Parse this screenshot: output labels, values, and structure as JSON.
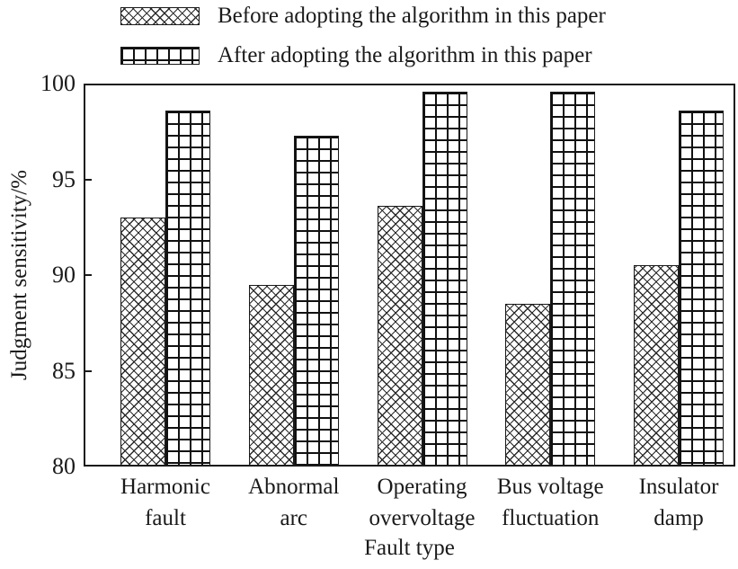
{
  "chart_data": {
    "type": "bar",
    "title": "",
    "xlabel": "Fault type",
    "ylabel": "Judgment sensitivity/%",
    "ylim": [
      80,
      100
    ],
    "yticks": [
      80,
      85,
      90,
      95,
      100
    ],
    "grid": false,
    "legend_position": "top-left",
    "categories": [
      "Harmonic fault",
      "Abnormal arc",
      "Operating overvoltage",
      "Bus voltage fluctuation",
      "Insulator damp"
    ],
    "category_lines": [
      [
        "Harmonic",
        "fault"
      ],
      [
        "Abnormal",
        "arc"
      ],
      [
        "Operating",
        "overvoltage"
      ],
      [
        "Bus voltage",
        "fluctuation"
      ],
      [
        "Insulator",
        "damp"
      ]
    ],
    "series": [
      {
        "name": "Before adopting the algorithm in this paper",
        "pattern": "crosshatch",
        "values": [
          93,
          89.5,
          93.6,
          88.5,
          90.5
        ]
      },
      {
        "name": "After adopting the algorithm in this paper",
        "pattern": "grid",
        "values": [
          98.6,
          97.3,
          99.6,
          99.6,
          98.6
        ]
      }
    ],
    "colors": {
      "bar_fill": "#ffffff",
      "line": "#1a1a1a",
      "text": "#1a1a1a"
    }
  }
}
